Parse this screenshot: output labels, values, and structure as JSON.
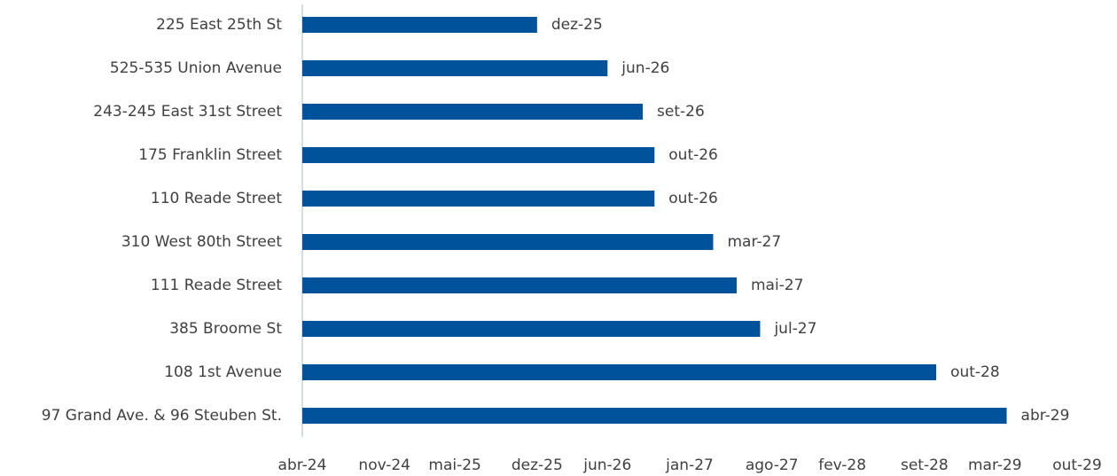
{
  "chart_data": {
    "type": "barh",
    "categories": [
      "225 East 25th St",
      "525-535 Union Avenue",
      "243-245 East 31st Street",
      "175 Franklin Street",
      "110 Reade Street",
      "310 West 80th Street",
      "111 Reade Street",
      "385 Broome St",
      "108 1st Avenue",
      "97 Grand Ave. & 96 Steuben St."
    ],
    "values": [
      "2025-12",
      "2026-06",
      "2026-09",
      "2026-10",
      "2026-10",
      "2027-03",
      "2027-05",
      "2027-07",
      "2028-10",
      "2029-04"
    ],
    "value_labels": [
      "dez-25",
      "jun-26",
      "set-26",
      "out-26",
      "out-26",
      "mar-27",
      "mai-27",
      "jul-27",
      "out-28",
      "abr-29"
    ],
    "color": "#00529b",
    "xlim": [
      "2024-04",
      "2029-10"
    ],
    "xticks": [
      {
        "value": "2024-04",
        "label": "abr-24"
      },
      {
        "value": "2024-11",
        "label": "nov-24"
      },
      {
        "value": "2025-05",
        "label": "mai-25"
      },
      {
        "value": "2025-12",
        "label": "dez-25"
      },
      {
        "value": "2026-06",
        "label": "jun-26"
      },
      {
        "value": "2027-01",
        "label": "jan-27"
      },
      {
        "value": "2027-08",
        "label": "ago-27"
      },
      {
        "value": "2028-02",
        "label": "fev-28"
      },
      {
        "value": "2028-09",
        "label": "set-28"
      },
      {
        "value": "2029-03",
        "label": "mar-29"
      },
      {
        "value": "2029-10",
        "label": "out-29"
      }
    ],
    "grid": false
  }
}
